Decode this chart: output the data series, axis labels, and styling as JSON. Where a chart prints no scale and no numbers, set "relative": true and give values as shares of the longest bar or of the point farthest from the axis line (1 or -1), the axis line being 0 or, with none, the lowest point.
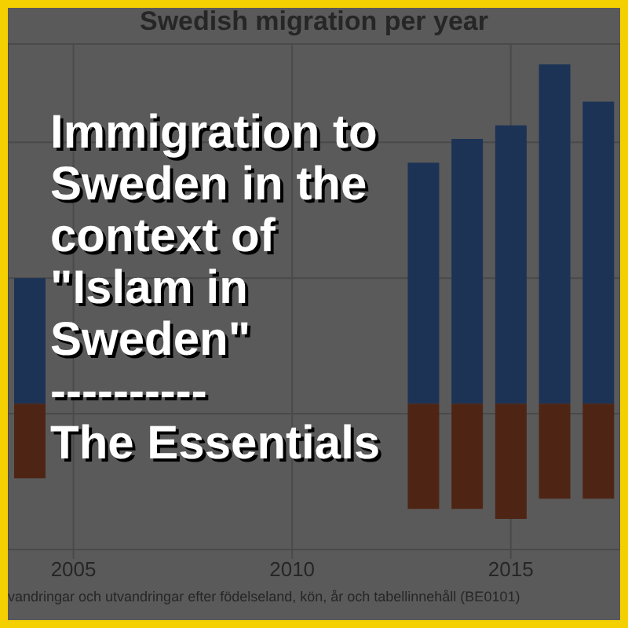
{
  "chart_data": {
    "type": "bar",
    "title": "Swedish migration per year",
    "relative": true,
    "x": [
      2004,
      2005,
      2006,
      2007,
      2008,
      2009,
      2010,
      2011,
      2012,
      2013,
      2014,
      2015,
      2016,
      2017
    ],
    "series": [
      {
        "color": "#1c3356",
        "values": [
          0.37,
          null,
          null,
          null,
          null,
          null,
          null,
          null,
          null,
          0.71,
          0.78,
          0.82,
          1,
          0.89
        ]
      },
      {
        "color": "#4e2514",
        "values": [
          -0.22,
          null,
          null,
          null,
          null,
          null,
          null,
          null,
          null,
          -0.31,
          -0.31,
          -0.34,
          -0.28,
          -0.28
        ]
      }
    ],
    "xlim": [
      2003.5,
      2017.5
    ],
    "xticks": [
      2005,
      2010,
      2015
    ],
    "grid": true,
    "annotations": [
      "Immigration to\nSweden in the\ncontext of\n\"Islam in\nSweden\"\n----------\nThe Essentials",
      "vandringar och utvandringar efter födelseland, kön, år och tabellinnehåll (BE0101)"
    ]
  }
}
